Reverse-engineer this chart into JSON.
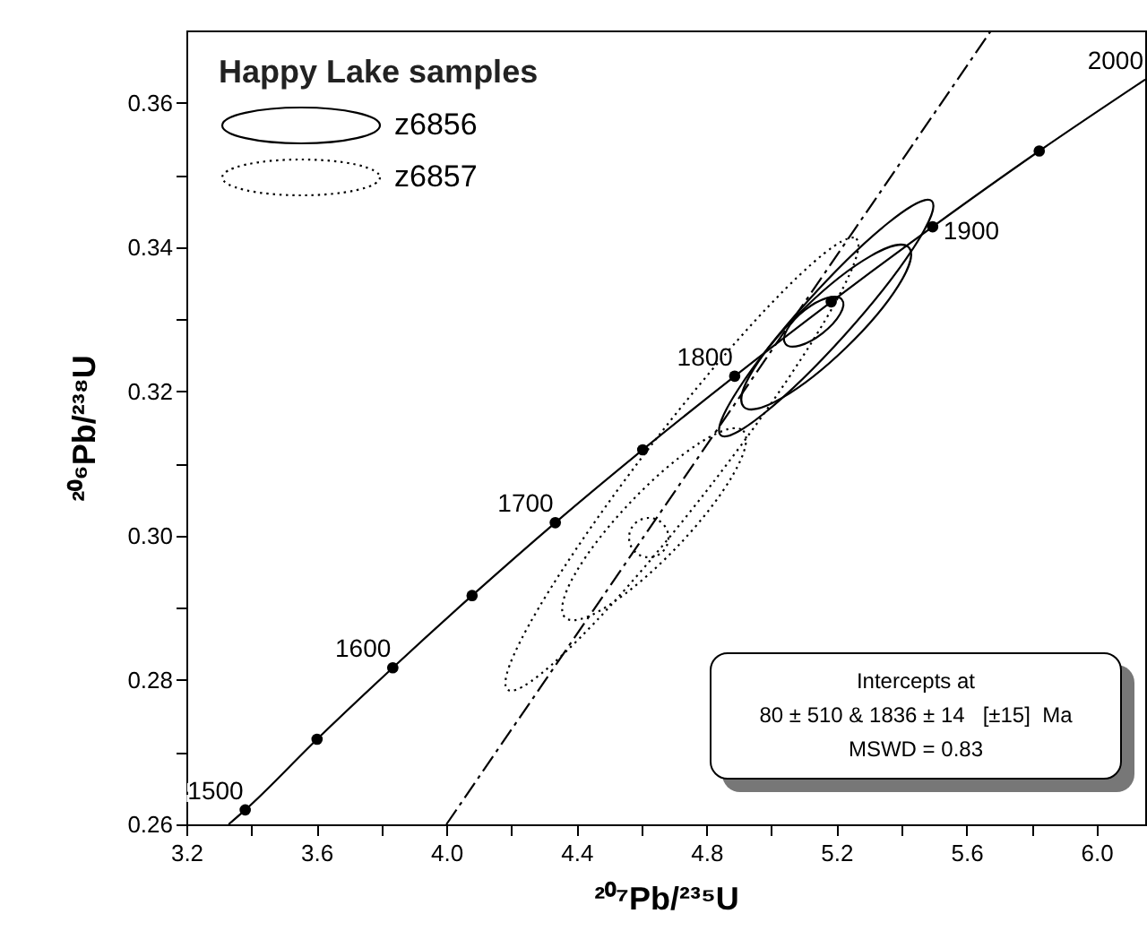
{
  "chart_data": {
    "type": "line",
    "xlabel": "²⁰⁷Pb/²³⁵U",
    "ylabel": "²⁰⁶Pb/²³⁸U",
    "xlim": [
      3.2,
      6.15
    ],
    "ylim": [
      0.26,
      0.37
    ],
    "xticks": [
      3.2,
      {
        "value": 3.4,
        "label": null
      },
      3.6,
      {
        "value": 3.8,
        "label": null
      },
      {
        "value": 4,
        "label": "4.0"
      },
      {
        "value": 4.2,
        "label": null
      },
      4.4,
      {
        "value": 4.6,
        "label": null
      },
      4.8,
      {
        "value": 5,
        "label": null
      },
      5.2,
      {
        "value": 5.4,
        "label": null
      },
      5.6,
      {
        "value": 5.8,
        "label": null
      },
      {
        "value": 6,
        "label": "6.0"
      }
    ],
    "yticks": [
      0.26,
      {
        "value": 0.27,
        "label": null
      },
      0.28,
      {
        "value": 0.29,
        "label": null
      },
      {
        "value": 0.3,
        "label": "0.30"
      },
      {
        "value": 0.31,
        "label": null
      },
      0.32,
      {
        "value": 0.33,
        "label": null
      },
      0.34,
      {
        "value": 0.35,
        "label": null
      },
      0.36
    ],
    "series": [
      {
        "color": "#000000",
        "line_style": "solid",
        "marker": "none",
        "x": [
          3.33,
          3.381,
          3.602,
          3.835,
          4.079,
          4.335,
          4.604,
          4.887,
          5.184,
          5.496,
          5.824,
          6.15
        ],
        "values": [
          0.26,
          0.262,
          0.2718,
          0.2817,
          0.2917,
          0.3018,
          0.3119,
          0.3221,
          0.3324,
          0.3428,
          0.3533,
          0.3632
        ]
      },
      {
        "type": "scatter",
        "color": "#000000",
        "marker": "circle",
        "x": [
          3.381,
          3.602,
          3.835,
          4.079,
          4.335,
          4.604,
          4.887,
          5.184,
          5.496,
          5.824
        ],
        "values": [
          0.262,
          0.2718,
          0.2817,
          0.2917,
          0.3018,
          0.3119,
          0.3221,
          0.3324,
          0.3428,
          0.3533
        ]
      },
      {
        "color": "#000000",
        "line_style": "dashdot",
        "marker": "none",
        "x": [
          4.0,
          5.676
        ],
        "values": [
          0.26,
          0.37
        ]
      }
    ],
    "annotations": [
      {
        "text": "1500",
        "x": 3.381,
        "y": 0.262
      },
      {
        "text": "1600",
        "x": 3.835,
        "y": 0.2817
      },
      {
        "text": "1700",
        "x": 4.335,
        "y": 0.3018
      },
      {
        "text": "1800",
        "x": 4.887,
        "y": 0.3221
      },
      {
        "text": "1900",
        "x": 5.496,
        "y": 0.3428
      },
      {
        "text": "2000",
        "x": 6.15,
        "y": 0.3632
      },
      "Happy Lake samples",
      "z6856",
      "z6857",
      "Intercepts at",
      "80 ± 510 & 1836 ± 14   [±15]  Ma",
      "MSWD = 0.83"
    ]
  }
}
